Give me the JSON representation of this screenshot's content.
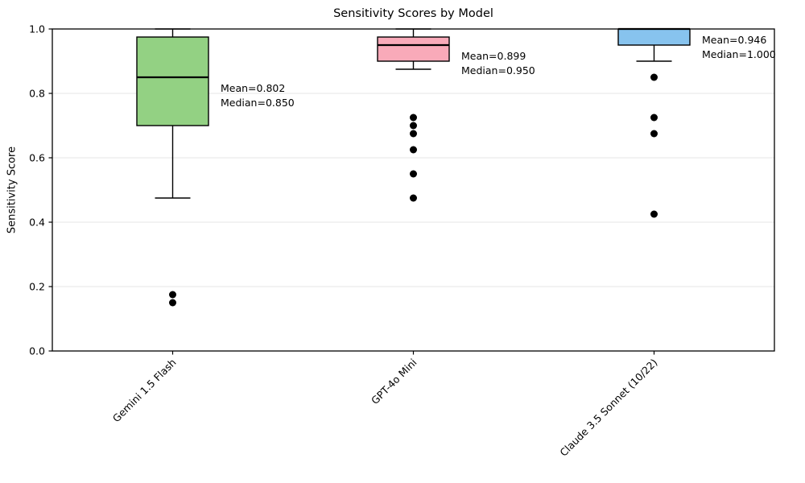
{
  "chart_data": {
    "type": "boxplot",
    "title": "Sensitivity Scores by Model",
    "ylabel": "Sensitivity Score",
    "xlabel": "",
    "ylim": [
      0.0,
      1.0
    ],
    "ytick_labels": [
      "0.0",
      "0.2",
      "0.4",
      "0.6",
      "0.8",
      "1.0"
    ],
    "grid": "horizontal-light",
    "legend": "none",
    "categories": [
      "Gemini 1.5 Flash",
      "GPT-4o Mini",
      "Claude 3.5 Sonnet (10/22)"
    ],
    "series": [
      {
        "label": "Gemini 1.5 Flash",
        "box_color": "#93d183",
        "whisker_low": 0.475,
        "q1": 0.7,
        "median": 0.85,
        "q3": 0.975,
        "whisker_high": 1.0,
        "mean": 0.802,
        "outliers": [
          0.175,
          0.15
        ],
        "annotation_lines": [
          "Mean=0.802",
          "Median=0.850"
        ]
      },
      {
        "label": "GPT-4o Mini",
        "box_color": "#f9aab9",
        "whisker_low": 0.875,
        "q1": 0.9,
        "median": 0.95,
        "q3": 0.975,
        "whisker_high": 1.0,
        "mean": 0.899,
        "outliers": [
          0.725,
          0.7,
          0.675,
          0.625,
          0.55,
          0.475
        ],
        "annotation_lines": [
          "Mean=0.899",
          "Median=0.950"
        ]
      },
      {
        "label": "Claude 3.5 Sonnet (10/22)",
        "box_color": "#87c3ee",
        "whisker_low": 0.9,
        "q1": 0.95,
        "median": 1.0,
        "q3": 1.0,
        "whisker_high": 1.0,
        "mean": 0.946,
        "outliers": [
          0.85,
          0.725,
          0.675,
          0.425
        ],
        "annotation_lines": [
          "Mean=0.946",
          "Median=1.000"
        ]
      }
    ],
    "styles": {
      "grid_color": "#e6e6e6",
      "spine_color": "#000000",
      "box_edge_color": "#000000",
      "median_color": "#000000",
      "flier_color": "#000000",
      "text_color": "#000000"
    }
  }
}
